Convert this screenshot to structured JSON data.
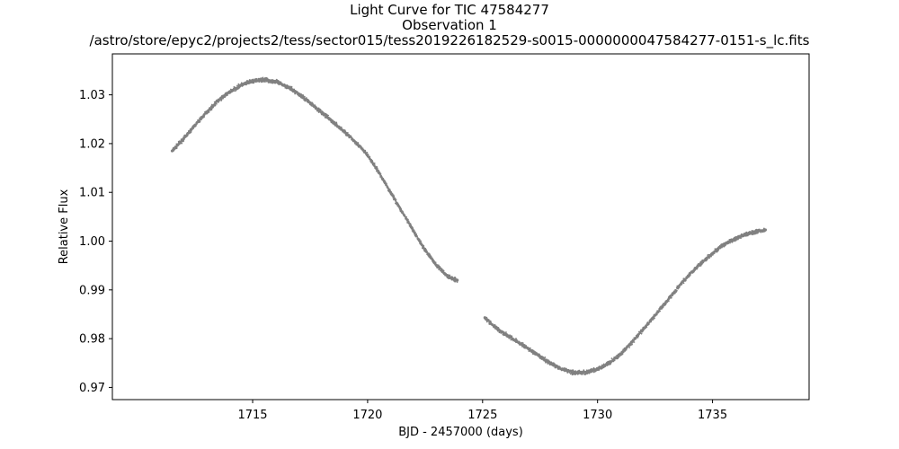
{
  "chart_data": {
    "type": "scatter",
    "title": "Light Curve for TIC 47584277",
    "subtitle": "Observation 1",
    "filepath": "/astro/store/epyc2/projects2/tess/sector015/tess2019226182529-s0015-0000000047584277-0151-s_lc.fits",
    "xlabel": "BJD - 2457000 (days)",
    "ylabel": "Relative Flux",
    "xlim": [
      1708.9,
      1739.2
    ],
    "ylim": [
      0.9675,
      1.0384
    ],
    "xticks": [
      1715,
      1720,
      1725,
      1730,
      1735
    ],
    "xtick_labels": [
      "1715",
      "1720",
      "1725",
      "1730",
      "1735"
    ],
    "yticks": [
      0.97,
      0.98,
      0.99,
      1.0,
      1.01,
      1.02,
      1.03
    ],
    "ytick_labels": [
      "0.97",
      "0.98",
      "0.99",
      "1.00",
      "1.01",
      "1.02",
      "1.03"
    ],
    "grid": false,
    "marker_color": "#808080",
    "series": [
      {
        "segment": 1,
        "x": [
          1711.5,
          1712.0,
          1712.5,
          1713.0,
          1713.5,
          1714.0,
          1714.5,
          1715.0,
          1715.5,
          1716.0,
          1716.5,
          1717.0,
          1717.5,
          1718.0,
          1718.5,
          1719.0,
          1719.5,
          1720.0,
          1720.5,
          1721.0,
          1721.5,
          1722.0,
          1722.5,
          1723.0,
          1723.5,
          1723.9
        ],
        "y": [
          1.0185,
          1.021,
          1.0238,
          1.0264,
          1.0288,
          1.0306,
          1.032,
          1.0328,
          1.0331,
          1.0327,
          1.0317,
          1.0302,
          1.0284,
          1.0264,
          1.0244,
          1.0224,
          1.0202,
          1.0176,
          1.014,
          1.01,
          1.006,
          1.002,
          0.9982,
          0.995,
          0.9927,
          0.992
        ]
      },
      {
        "segment": 2,
        "x": [
          1725.1,
          1725.5,
          1726.0,
          1726.5,
          1727.0,
          1727.5,
          1728.0,
          1728.5,
          1729.0,
          1729.5,
          1730.0,
          1730.5,
          1731.0,
          1731.5,
          1732.0,
          1732.5,
          1733.0,
          1733.5,
          1734.0,
          1734.5,
          1735.0,
          1735.5,
          1736.0,
          1736.5,
          1737.0,
          1737.3
        ],
        "y": [
          0.9843,
          0.9825,
          0.9809,
          0.9794,
          0.9779,
          0.9763,
          0.9748,
          0.9737,
          0.973,
          0.9731,
          0.9737,
          0.975,
          0.9768,
          0.9793,
          0.982,
          0.9848,
          0.9876,
          0.9905,
          0.9932,
          0.9955,
          0.9975,
          0.9993,
          1.0005,
          1.0015,
          1.0021,
          1.0023
        ]
      }
    ]
  }
}
